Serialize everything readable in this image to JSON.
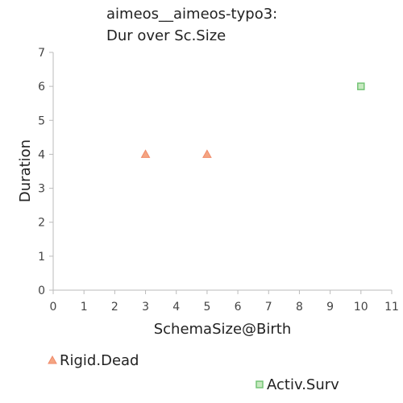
{
  "chart_data": {
    "type": "scatter",
    "title_lines": [
      "aimeos__aimeos-typo3:",
      "Dur over Sc.Size"
    ],
    "xlabel": "SchemaSize@Birth",
    "ylabel": "Duration",
    "xlim": [
      0,
      11
    ],
    "ylim": [
      0,
      7
    ],
    "x_ticks": [
      "0",
      "1",
      "2",
      "3",
      "4",
      "5",
      "6",
      "7",
      "8",
      "9",
      "10",
      "11"
    ],
    "y_ticks": [
      "0",
      "1",
      "2",
      "3",
      "4",
      "5",
      "6",
      "7"
    ],
    "grid": false,
    "series": [
      {
        "name": "Rigid.Dead",
        "marker": "triangle",
        "color": "#f4a582",
        "edge": "#f08a6a",
        "points": [
          {
            "x": 3,
            "y": 4
          },
          {
            "x": 5,
            "y": 4
          }
        ]
      },
      {
        "name": "Activ.Surv",
        "marker": "square",
        "color": "#c7e9c0",
        "edge": "#74c476",
        "points": [
          {
            "x": 10,
            "y": 6
          }
        ]
      }
    ]
  }
}
